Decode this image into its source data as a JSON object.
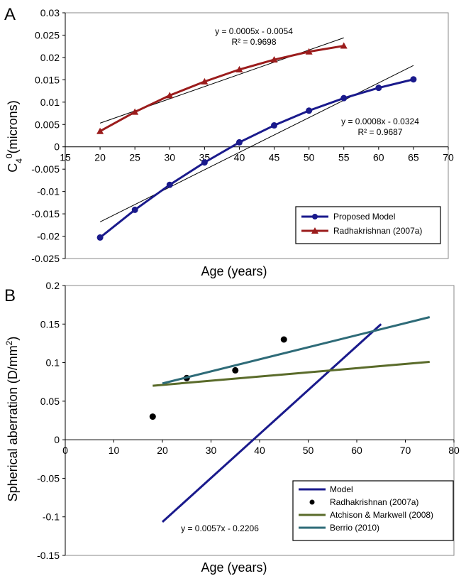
{
  "chart_data": [
    {
      "panel_label": "A",
      "type": "line",
      "xlabel": "Age (years)",
      "ylabel_main": "C",
      "ylabel_sub": "4",
      "ylabel_sup": "0",
      "ylabel_rest": "(microns)",
      "xlim": [
        15,
        70
      ],
      "ylim": [
        -0.025,
        0.03
      ],
      "xticks": [
        "15",
        "20",
        "25",
        "30",
        "35",
        "40",
        "45",
        "50",
        "55",
        "60",
        "65",
        "70"
      ],
      "xtick_values": [
        15,
        20,
        25,
        30,
        35,
        40,
        45,
        50,
        55,
        60,
        65,
        70
      ],
      "yticks": [
        "0.03",
        "0.025",
        "0.02",
        "0.015",
        "0.01",
        "0.005",
        "0",
        "-0.005",
        "-0.01",
        "-0.015",
        "-0.02",
        "-0.025"
      ],
      "ytick_values": [
        0.03,
        0.025,
        0.02,
        0.015,
        0.01,
        0.005,
        0,
        -0.005,
        -0.01,
        -0.015,
        -0.02,
        -0.025
      ],
      "series": [
        {
          "name": "Proposed Model",
          "color": "#1a1a8c",
          "marker": "circle",
          "x": [
            20,
            25,
            30,
            35,
            40,
            45,
            50,
            55,
            60,
            65
          ],
          "y": [
            -0.0203,
            -0.0141,
            -0.0085,
            -0.0035,
            0.001,
            0.0048,
            0.0081,
            0.0109,
            0.0132,
            0.0151
          ]
        },
        {
          "name": "Radhakrishnan (2007a)",
          "color": "#9b1c1c",
          "marker": "triangle",
          "x": [
            20,
            25,
            30,
            35,
            40,
            45,
            50,
            55
          ],
          "y": [
            0.0035,
            0.0078,
            0.0115,
            0.0146,
            0.0173,
            0.0195,
            0.0213,
            0.0226
          ]
        }
      ],
      "trendlines": [
        {
          "for": "Proposed Model",
          "x": [
            20,
            65
          ],
          "y": [
            -0.0168,
            0.0182
          ]
        },
        {
          "for": "Radhakrishnan (2007a)",
          "x": [
            20,
            55
          ],
          "y": [
            0.0053,
            0.0244
          ]
        }
      ],
      "annotations": [
        {
          "line1": "y = 0.0005x - 0.0054",
          "line2": "R² = 0.9698"
        },
        {
          "line1": "y = 0.0008x - 0.0324",
          "line2": "R² = 0.9687"
        }
      ],
      "legend_position": "bottom-right"
    },
    {
      "panel_label": "B",
      "type": "line",
      "xlabel": "Age (years)",
      "ylabel_main": "Spherical aberration (D/mm",
      "ylabel_sup": "2",
      "ylabel_close": ")",
      "xlim": [
        0,
        80
      ],
      "ylim": [
        -0.15,
        0.2
      ],
      "xticks": [
        "0",
        "10",
        "20",
        "30",
        "40",
        "50",
        "60",
        "70",
        "80"
      ],
      "xtick_values": [
        0,
        10,
        20,
        30,
        40,
        50,
        60,
        70,
        80
      ],
      "yticks": [
        "0.2",
        "0.15",
        "0.1",
        "0.05",
        "0",
        "-0.05",
        "-0.1",
        "-0.15"
      ],
      "ytick_values": [
        0.2,
        0.15,
        0.1,
        0.05,
        0,
        -0.05,
        -0.1,
        -0.15
      ],
      "series": [
        {
          "name": "Model",
          "color": "#1a1a8c",
          "style": "line",
          "x": [
            20,
            65
          ],
          "y": [
            -0.1066,
            0.1499
          ]
        },
        {
          "name": "Radhakrishnan (2007a)",
          "color": "#000000",
          "style": "points",
          "x": [
            18,
            25,
            35,
            45
          ],
          "y": [
            0.03,
            0.08,
            0.09,
            0.13
          ]
        },
        {
          "name": "Atchison & Markwell (2008)",
          "color": "#5a6b2a",
          "style": "line",
          "x": [
            18,
            75
          ],
          "y": [
            0.07,
            0.101
          ]
        },
        {
          "name": "Berrio (2010)",
          "color": "#2e6b78",
          "style": "line",
          "x": [
            20,
            75
          ],
          "y": [
            0.073,
            0.159
          ]
        }
      ],
      "annotations": [
        {
          "line1": "y = 0.0057x - 0.2206"
        }
      ],
      "legend_position": "bottom-right"
    }
  ]
}
